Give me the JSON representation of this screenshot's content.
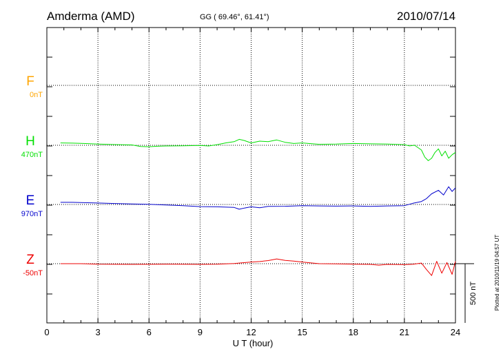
{
  "station_title": "Amderma (AMD)",
  "coords": "GG ( 69.46°,  61.41°)",
  "date": "2010/07/14",
  "plotted_note": "Plotted at 2010/11/19 04:57 UT",
  "scale_label": "500 nT",
  "colors": {
    "F": "#ffa500",
    "H": "#00e000",
    "E": "#0000cc",
    "Z": "#ee0000",
    "axis": "#000000"
  },
  "chart_data": {
    "type": "line",
    "title": "Amderma (AMD)",
    "xlabel": "U T (hour)",
    "ylabel": "",
    "xlim": [
      0,
      24
    ],
    "x_ticks": [
      "0",
      "3",
      "6",
      "9",
      "12",
      "15",
      "18",
      "21",
      "24"
    ],
    "grid": true,
    "scale_bar_nT": 500,
    "series": [
      {
        "name": "F",
        "baseline": "0nT",
        "values": []
      },
      {
        "name": "H",
        "baseline": "470nT",
        "x": [
          0.8,
          1.5,
          2,
          3,
          4,
          5,
          5.5,
          6,
          6.5,
          7,
          8,
          9,
          9.5,
          10,
          10.5,
          11,
          11.3,
          11.6,
          12,
          12.5,
          13,
          13.5,
          14,
          14.5,
          15,
          16,
          17,
          18,
          19,
          20,
          21,
          21.3,
          21.6,
          22,
          22.2,
          22.4,
          22.6,
          22.8,
          23,
          23.2,
          23.4,
          23.6,
          23.8,
          24
        ],
        "values": [
          20,
          18,
          16,
          10,
          6,
          3,
          -10,
          -12,
          -8,
          -6,
          -4,
          -2,
          -6,
          5,
          20,
          30,
          50,
          40,
          20,
          35,
          30,
          45,
          25,
          15,
          20,
          8,
          10,
          15,
          12,
          10,
          5,
          -5,
          0,
          -40,
          -100,
          -130,
          -110,
          -60,
          -30,
          -90,
          -50,
          -110,
          -80,
          -60
        ]
      },
      {
        "name": "E",
        "baseline": "970nT",
        "x": [
          0.8,
          1.5,
          2,
          3,
          4,
          5,
          6,
          7,
          8,
          9,
          10,
          11,
          11.3,
          11.6,
          12,
          12.5,
          13,
          14,
          15,
          16,
          17,
          18,
          19,
          20,
          21,
          21.5,
          22,
          22.3,
          22.6,
          23,
          23.3,
          23.6,
          23.8,
          24
        ],
        "values": [
          18,
          18,
          16,
          12,
          8,
          4,
          2,
          -4,
          -10,
          -18,
          -20,
          -25,
          -40,
          -30,
          -20,
          -28,
          -16,
          -15,
          -10,
          -12,
          -14,
          -12,
          -16,
          -12,
          -10,
          10,
          25,
          50,
          90,
          120,
          80,
          150,
          110,
          140
        ]
      },
      {
        "name": "Z",
        "baseline": "-50nT",
        "x": [
          0.8,
          2,
          3,
          5,
          7,
          9,
          10,
          11,
          12,
          12.5,
          13,
          13.5,
          14,
          14.5,
          15,
          16,
          17,
          18,
          19,
          19.5,
          20,
          21,
          21.5,
          22,
          22.3,
          22.6,
          22.9,
          23.2,
          23.5,
          23.8,
          24
        ],
        "values": [
          0,
          0,
          -4,
          -6,
          -4,
          -6,
          -4,
          2,
          14,
          18,
          26,
          40,
          28,
          22,
          14,
          0,
          -2,
          -4,
          -6,
          -12,
          -6,
          -8,
          -5,
          5,
          -50,
          -100,
          20,
          -80,
          10,
          -90,
          20
        ]
      }
    ]
  }
}
